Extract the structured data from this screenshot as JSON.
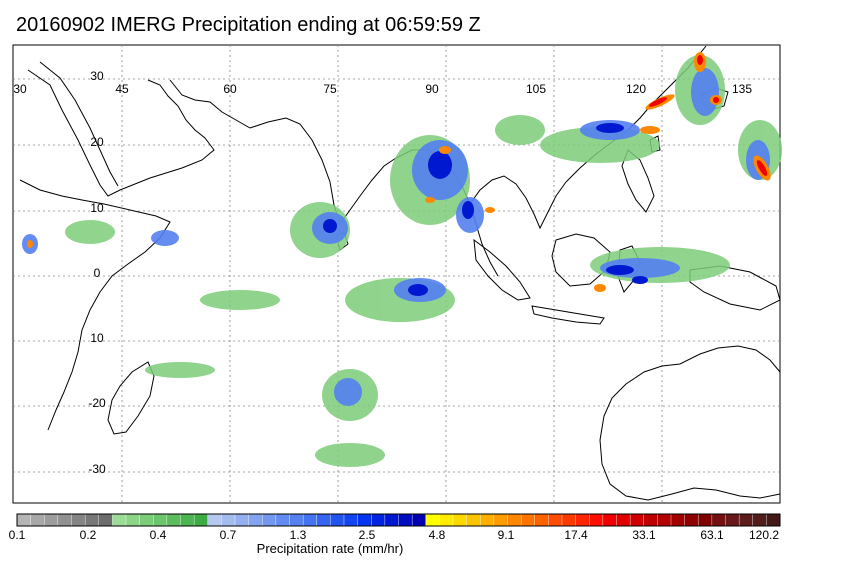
{
  "title": "20160902 IMERG Precipitation ending at 06:59:59 Z",
  "map": {
    "lon_labels": [
      "30",
      "45",
      "60",
      "75",
      "90",
      "105",
      "120",
      "135"
    ],
    "lat_labels": [
      "30",
      "20",
      "10",
      "0",
      "10",
      "-20",
      "-30"
    ]
  },
  "colorbar": {
    "label": "Precipitation rate (mm/hr)",
    "tick_labels": [
      "0.1",
      "0.2",
      "0.4",
      "0.7",
      "1.3",
      "2.5",
      "4.8",
      "9.1",
      "17.4",
      "33.1",
      "63.1",
      "120.2"
    ],
    "colors": [
      "#b4b4b4",
      "#a8a8a8",
      "#9c9c9c",
      "#909090",
      "#848484",
      "#787878",
      "#6c6c6c",
      "#9cdc96",
      "#8cd488",
      "#7ccc7a",
      "#6cc46c",
      "#5cbc5e",
      "#4cb450",
      "#3cac42",
      "#b4c8f0",
      "#a4bcf0",
      "#94b0f0",
      "#84a4f0",
      "#7498f0",
      "#648cf0",
      "#5480f0",
      "#4474f0",
      "#3464f0",
      "#2454f0",
      "#1444f0",
      "#0434f0",
      "#0024e0",
      "#0018d0",
      "#000cc0",
      "#0000b0",
      "#ffff00",
      "#ffec00",
      "#ffd800",
      "#ffc400",
      "#ffb000",
      "#ff9c00",
      "#ff8800",
      "#ff7400",
      "#ff6000",
      "#ff4c00",
      "#ff3800",
      "#ff2400",
      "#ff1000",
      "#f00000",
      "#e00000",
      "#d00000",
      "#c00000",
      "#b00000",
      "#a00000",
      "#900000",
      "#800000",
      "#741010",
      "#681818",
      "#5c1c1c",
      "#501c1c",
      "#441818"
    ]
  }
}
